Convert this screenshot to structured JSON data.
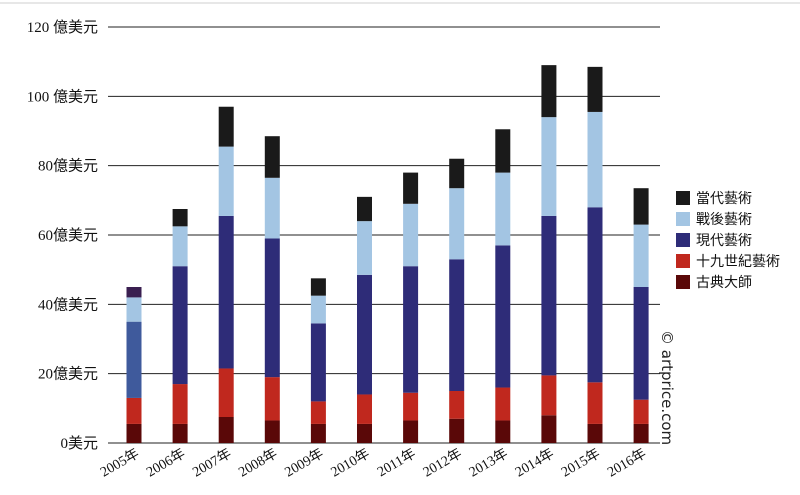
{
  "chart_data": {
    "type": "bar",
    "stacked": true,
    "title": "",
    "xlabel": "",
    "ylabel": "",
    "ylim": [
      0,
      120
    ],
    "yticks": [
      0,
      20,
      40,
      60,
      80,
      100,
      120
    ],
    "ytick_labels": [
      "0美元",
      "20億美元",
      "40億美元",
      "60億美元",
      "80億美元",
      "100 億美元",
      "120 億美元"
    ],
    "categories": [
      "2005年",
      "2006年",
      "2007年",
      "2008年",
      "2009年",
      "2010年",
      "2011年",
      "2012年",
      "2013年",
      "2014年",
      "2015年",
      "2016年"
    ],
    "series": [
      {
        "name": "古典大師",
        "color": "#5a0808",
        "values": [
          5.5,
          5.5,
          7.5,
          6.5,
          5.5,
          5.5,
          6.5,
          7,
          6.5,
          8,
          5.5,
          5.5
        ]
      },
      {
        "name": "十九世紀藝術",
        "color": "#c0281e",
        "values": [
          7.5,
          11.5,
          14,
          12.5,
          6.5,
          8.5,
          8,
          8,
          9.5,
          11.5,
          12,
          7
        ]
      },
      {
        "name": "現代藝術",
        "color": "#2e2c78",
        "values": [
          22,
          34,
          44,
          40,
          22.5,
          34.5,
          36.5,
          38,
          41,
          46,
          50.5,
          32.5
        ]
      },
      {
        "name": "戰後藝術",
        "color": "#a3c5e3",
        "values": [
          7,
          11.5,
          20,
          17.5,
          8,
          15.5,
          18,
          20.5,
          21,
          28.5,
          27.5,
          18
        ]
      },
      {
        "name": "當代藝術",
        "color": "#1a1a1a",
        "values": [
          3,
          5,
          11.5,
          12,
          5,
          7,
          9,
          8.5,
          12.5,
          15,
          13,
          10.5
        ]
      }
    ],
    "special_fill": {
      "series": 2,
      "category": 0,
      "color": "#3f5a9c"
    },
    "special_fill_top": {
      "series": 4,
      "category": 0,
      "color": "#3a1f50"
    },
    "legend": {
      "position": "right",
      "order": [
        "當代藝術",
        "戰後藝術",
        "現代藝術",
        "十九世紀藝術",
        "古典大師"
      ]
    },
    "watermark": "© artprice.com"
  }
}
